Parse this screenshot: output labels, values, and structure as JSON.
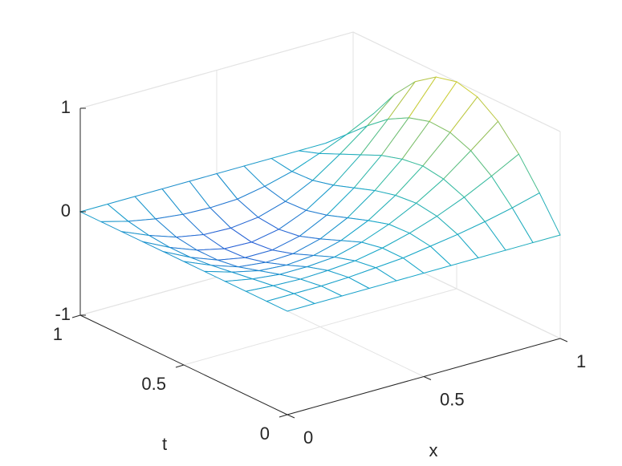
{
  "chart_data": {
    "type": "mesh3d",
    "xlabel": "x",
    "ylabel": "t",
    "x": [
      0,
      0.1,
      0.2,
      0.3,
      0.4,
      0.5,
      0.6,
      0.7,
      0.8,
      0.9,
      1
    ],
    "y": [
      0,
      0.1,
      0.2,
      0.3,
      0.4,
      0.5,
      0.6,
      0.7,
      0.8,
      0.9,
      1
    ],
    "z": [
      [
        0,
        0,
        0,
        0,
        0,
        0,
        0,
        0,
        0,
        0,
        0
      ],
      [
        0,
        0,
        0,
        0.01,
        0.03,
        0.05,
        0.09,
        0.13,
        0.18,
        0.24,
        0.31
      ],
      [
        0,
        -0.02,
        -0.03,
        -0.02,
        0,
        0.05,
        0.12,
        0.21,
        0.32,
        0.45,
        0.59
      ],
      [
        0,
        -0.05,
        -0.08,
        -0.08,
        -0.06,
        0.01,
        0.11,
        0.24,
        0.4,
        0.6,
        0.81
      ],
      [
        0,
        -0.08,
        -0.14,
        -0.16,
        -0.14,
        -0.07,
        0.05,
        0.22,
        0.43,
        0.68,
        0.95
      ],
      [
        0,
        -0.11,
        -0.2,
        -0.23,
        -0.22,
        -0.15,
        -0.02,
        0.17,
        0.4,
        0.69,
        1
      ],
      [
        0,
        -0.13,
        -0.23,
        -0.28,
        -0.28,
        -0.22,
        -0.09,
        0.1,
        0.34,
        0.63,
        0.95
      ],
      [
        0,
        -0.13,
        -0.23,
        -0.29,
        -0.3,
        -0.25,
        -0.14,
        0.03,
        0.25,
        0.52,
        0.81
      ],
      [
        0,
        -0.11,
        -0.2,
        -0.25,
        -0.26,
        -0.23,
        -0.15,
        -0.02,
        0.16,
        0.36,
        0.59
      ],
      [
        0,
        -0.07,
        -0.12,
        -0.15,
        -0.16,
        -0.15,
        -0.1,
        -0.03,
        0.07,
        0.18,
        0.31
      ],
      [
        0,
        0,
        0,
        0,
        0,
        0,
        0,
        0,
        0,
        0,
        0
      ]
    ],
    "xlim": [
      0,
      1
    ],
    "ylim": [
      0,
      1
    ],
    "zlim": [
      -1,
      1
    ],
    "xticks": [
      0,
      0.5,
      1
    ],
    "yticks": [
      0,
      0.5,
      1
    ],
    "zticks": [
      -1,
      0,
      1
    ],
    "grid": true,
    "colormap": [
      "#2a5ed6",
      "#17a6c9",
      "#3dbf9c",
      "#a6bf4c",
      "#f5df1f"
    ]
  }
}
